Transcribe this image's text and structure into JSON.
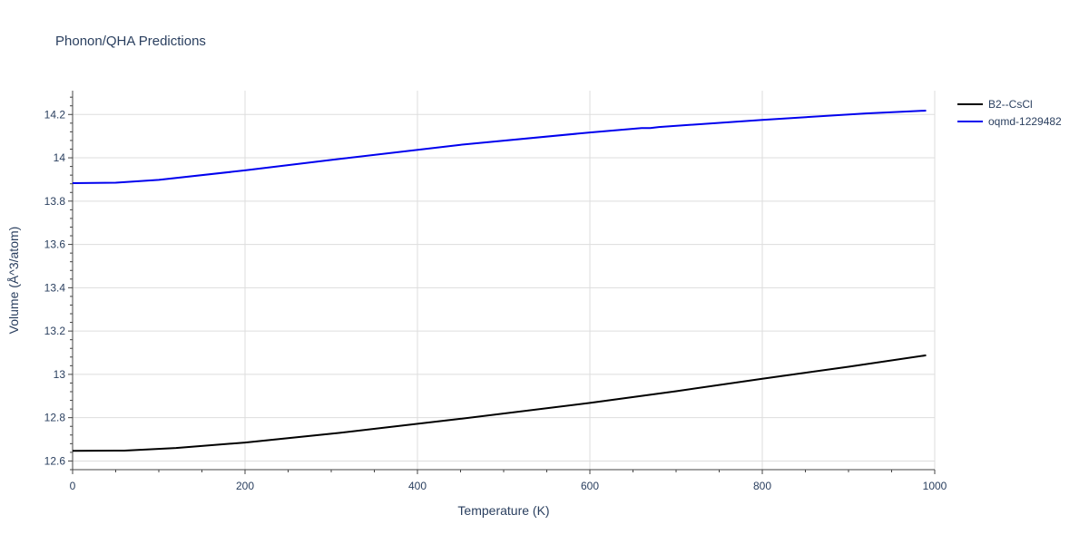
{
  "chart_data": {
    "type": "line",
    "title": "Phonon/QHA Predictions",
    "xlabel": "Temperature (K)",
    "ylabel": "Volume (Å^3/atom)",
    "xlim": [
      0,
      1000
    ],
    "ylim": [
      12.56,
      14.31
    ],
    "xticks": [
      0,
      200,
      400,
      600,
      800,
      1000
    ],
    "xtick_labels": [
      "0",
      "200",
      "400",
      "600",
      "800",
      "1000"
    ],
    "yticks": [
      12.6,
      12.8,
      13,
      13.2,
      13.4,
      13.6,
      13.8,
      14,
      14.2
    ],
    "ytick_labels": [
      "12.6",
      "12.8",
      "13",
      "13.2",
      "13.4",
      "13.6",
      "13.8",
      "14",
      "14.2"
    ],
    "grid": true,
    "legend_position": "top-right",
    "series": [
      {
        "name": "B2--CsCl",
        "color": "#000000",
        "x": [
          0,
          60,
          120,
          200,
          310,
          450,
          600,
          700,
          800,
          900,
          990
        ],
        "y": [
          12.647,
          12.648,
          12.66,
          12.685,
          12.73,
          12.795,
          12.868,
          12.922,
          12.98,
          13.035,
          13.088
        ]
      },
      {
        "name": "oqmd-1229482",
        "color": "#0000ee",
        "x": [
          0,
          50,
          100,
          200,
          300,
          450,
          600,
          660,
          670,
          680,
          800,
          920,
          990
        ],
        "y": [
          13.883,
          13.885,
          13.898,
          13.942,
          13.99,
          14.06,
          14.117,
          14.137,
          14.137,
          14.142,
          14.175,
          14.205,
          14.218
        ]
      }
    ]
  }
}
